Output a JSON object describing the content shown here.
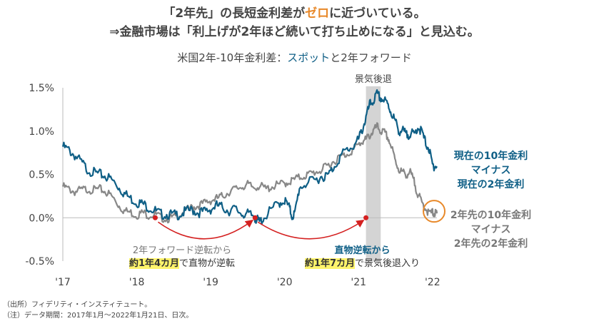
{
  "headline": {
    "line1_pre": "「2年先」の長短金利差が",
    "line1_emph": "ゼロ",
    "line1_post": "に近づいている。",
    "line2": "⇒金融市場は「利上げが2年ほど続いて打ち止めになる」と見込む。"
  },
  "subtitle": {
    "pre": "米国2年-10年金利差：",
    "emph": "スポット",
    "post": "と2年フォワード"
  },
  "colors": {
    "spot": "#0f5f86",
    "forward": "#888888",
    "recession": "#d4d4d4",
    "arrow": "#d42020",
    "circle": "#e8892a"
  },
  "chart_data": {
    "type": "line",
    "title": "米国2年-10年金利差：スポットと2年フォワード",
    "xlabel": "",
    "ylabel": "",
    "ylim": [
      -0.5,
      1.5
    ],
    "xlim": [
      2017.0,
      2022.06
    ],
    "yticks": [
      "1.5%",
      "1.0%",
      "0.5%",
      "0.0%",
      "-0.5%"
    ],
    "ytick_values": [
      1.5,
      1.0,
      0.5,
      0.0,
      -0.5
    ],
    "xticks": [
      "'17",
      "'18",
      "'19",
      "'20",
      "'21",
      "'22"
    ],
    "xtick_values": [
      2017.0,
      2018.0,
      2019.0,
      2020.0,
      2021.0,
      2022.0
    ],
    "recession_band": {
      "label": "景気後退",
      "x": [
        2021.1,
        2021.3
      ]
    },
    "series": [
      {
        "name": "現在の10年金利マイナス現在の2年金利",
        "points": [
          [
            2017.0,
            0.82
          ],
          [
            2017.08,
            0.78
          ],
          [
            2017.16,
            0.72
          ],
          [
            2017.25,
            0.64
          ],
          [
            2017.33,
            0.56
          ],
          [
            2017.42,
            0.52
          ],
          [
            2017.5,
            0.5
          ],
          [
            2017.58,
            0.48
          ],
          [
            2017.66,
            0.44
          ],
          [
            2017.75,
            0.36
          ],
          [
            2017.83,
            0.28
          ],
          [
            2017.92,
            0.22
          ],
          [
            2018.0,
            0.18
          ],
          [
            2018.08,
            0.16
          ],
          [
            2018.16,
            0.12
          ],
          [
            2018.25,
            0.08
          ],
          [
            2018.33,
            0.04
          ],
          [
            2018.42,
            0.04
          ],
          [
            2018.5,
            0.03
          ],
          [
            2018.58,
            0.04
          ],
          [
            2018.66,
            0.07
          ],
          [
            2018.75,
            0.09
          ],
          [
            2018.83,
            0.06
          ],
          [
            2018.92,
            0.07
          ],
          [
            2019.0,
            0.1
          ],
          [
            2019.08,
            0.14
          ],
          [
            2019.16,
            0.12
          ],
          [
            2019.25,
            0.08
          ],
          [
            2019.33,
            0.1
          ],
          [
            2019.42,
            0.05
          ],
          [
            2019.5,
            0.04
          ],
          [
            2019.58,
            0.02
          ],
          [
            2019.62,
            -0.02
          ],
          [
            2019.66,
            -0.05
          ],
          [
            2019.72,
            0.0
          ],
          [
            2019.83,
            0.1
          ],
          [
            2019.92,
            0.17
          ],
          [
            2020.0,
            0.2
          ],
          [
            2020.06,
            0.12
          ],
          [
            2020.1,
            0.02
          ],
          [
            2020.14,
            0.05
          ],
          [
            2020.2,
            0.35
          ],
          [
            2020.3,
            0.4
          ],
          [
            2020.42,
            0.43
          ],
          [
            2020.5,
            0.48
          ],
          [
            2020.58,
            0.48
          ],
          [
            2020.66,
            0.58
          ],
          [
            2020.75,
            0.7
          ],
          [
            2020.83,
            0.78
          ],
          [
            2020.92,
            0.82
          ],
          [
            2021.0,
            0.9
          ],
          [
            2021.05,
            1.02
          ],
          [
            2021.1,
            1.15
          ],
          [
            2021.15,
            1.3
          ],
          [
            2021.2,
            1.35
          ],
          [
            2021.25,
            1.42
          ],
          [
            2021.3,
            1.38
          ],
          [
            2021.35,
            1.35
          ],
          [
            2021.4,
            1.3
          ],
          [
            2021.45,
            1.2
          ],
          [
            2021.5,
            1.1
          ],
          [
            2021.55,
            1.0
          ],
          [
            2021.6,
            1.0
          ],
          [
            2021.65,
            0.95
          ],
          [
            2021.7,
            0.98
          ],
          [
            2021.75,
            0.95
          ],
          [
            2021.8,
            1.05
          ],
          [
            2021.85,
            1.0
          ],
          [
            2021.9,
            0.88
          ],
          [
            2021.95,
            0.8
          ],
          [
            2022.0,
            0.6
          ],
          [
            2022.03,
            0.6
          ],
          [
            2022.06,
            0.58
          ]
        ]
      },
      {
        "name": "2年先の10年金利マイナス2年先の2年金利",
        "points": [
          [
            2017.0,
            0.36
          ],
          [
            2017.08,
            0.33
          ],
          [
            2017.16,
            0.3
          ],
          [
            2017.25,
            0.32
          ],
          [
            2017.33,
            0.33
          ],
          [
            2017.42,
            0.32
          ],
          [
            2017.5,
            0.33
          ],
          [
            2017.58,
            0.3
          ],
          [
            2017.66,
            0.25
          ],
          [
            2017.75,
            0.15
          ],
          [
            2017.83,
            0.08
          ],
          [
            2017.92,
            0.06
          ],
          [
            2018.0,
            0.03
          ],
          [
            2018.08,
            0.06
          ],
          [
            2018.16,
            0.03
          ],
          [
            2018.25,
            0.04
          ],
          [
            2018.33,
            0.0
          ],
          [
            2018.42,
            -0.01
          ],
          [
            2018.5,
            0.0
          ],
          [
            2018.58,
            0.04
          ],
          [
            2018.66,
            0.08
          ],
          [
            2018.75,
            0.12
          ],
          [
            2018.83,
            0.14
          ],
          [
            2018.92,
            0.17
          ],
          [
            2019.0,
            0.2
          ],
          [
            2019.08,
            0.22
          ],
          [
            2019.16,
            0.25
          ],
          [
            2019.25,
            0.3
          ],
          [
            2019.33,
            0.33
          ],
          [
            2019.42,
            0.36
          ],
          [
            2019.5,
            0.38
          ],
          [
            2019.58,
            0.35
          ],
          [
            2019.66,
            0.37
          ],
          [
            2019.75,
            0.33
          ],
          [
            2019.83,
            0.36
          ],
          [
            2019.92,
            0.38
          ],
          [
            2020.0,
            0.4
          ],
          [
            2020.08,
            0.42
          ],
          [
            2020.16,
            0.45
          ],
          [
            2020.25,
            0.48
          ],
          [
            2020.33,
            0.5
          ],
          [
            2020.42,
            0.53
          ],
          [
            2020.5,
            0.55
          ],
          [
            2020.58,
            0.6
          ],
          [
            2020.66,
            0.65
          ],
          [
            2020.75,
            0.7
          ],
          [
            2020.83,
            0.73
          ],
          [
            2020.92,
            0.78
          ],
          [
            2021.0,
            0.84
          ],
          [
            2021.05,
            0.88
          ],
          [
            2021.1,
            0.9
          ],
          [
            2021.15,
            0.95
          ],
          [
            2021.2,
            1.0
          ],
          [
            2021.25,
            1.05
          ],
          [
            2021.3,
            1.0
          ],
          [
            2021.35,
            0.98
          ],
          [
            2021.4,
            0.92
          ],
          [
            2021.45,
            0.8
          ],
          [
            2021.5,
            0.65
          ],
          [
            2021.55,
            0.55
          ],
          [
            2021.6,
            0.52
          ],
          [
            2021.65,
            0.5
          ],
          [
            2021.7,
            0.52
          ],
          [
            2021.75,
            0.42
          ],
          [
            2021.8,
            0.28
          ],
          [
            2021.85,
            0.18
          ],
          [
            2021.9,
            0.12
          ],
          [
            2021.95,
            0.05
          ],
          [
            2022.0,
            0.06
          ],
          [
            2022.03,
            0.05
          ],
          [
            2022.06,
            0.05
          ]
        ]
      }
    ],
    "annotation_points": [
      [
        2018.25,
        0.0
      ],
      [
        2019.6,
        0.0
      ],
      [
        2021.1,
        0.0
      ]
    ]
  },
  "labels": {
    "spot": [
      "現在の10年金利",
      "マイナス",
      "現在の2年金利"
    ],
    "forward": [
      "2年先の10年金利",
      "マイナス",
      "2年先の2年金利"
    ]
  },
  "annotations": {
    "left_line1": "2年フォワード逆転から",
    "left_hl": "約1年4カ月",
    "left_rest": "で直物が逆転",
    "right_line1": "直物逆転から",
    "right_hl": "約1年7カ月",
    "right_rest": "で景気後退入り"
  },
  "notes": {
    "source": "（出所）フィデリティ・インスティテュート。",
    "note": "（注）データ期間：2017年1月～2022年1月21日、日次。"
  }
}
